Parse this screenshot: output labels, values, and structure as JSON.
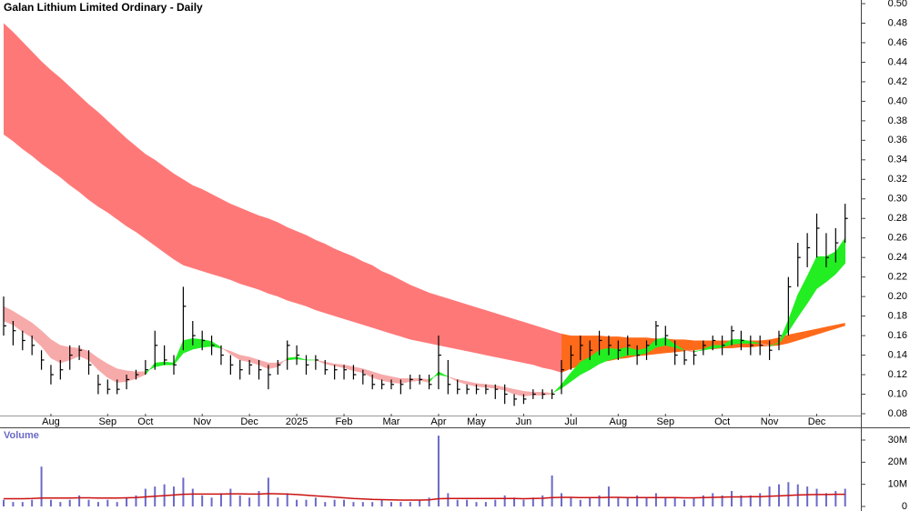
{
  "chart_data": [
    {
      "type": "ohlc",
      "title": "Galan Lithium Limited Ordinary - Daily",
      "categories": [
        null,
        null,
        null,
        null,
        null,
        "Aug",
        null,
        null,
        null,
        null,
        null,
        "Sep",
        null,
        null,
        null,
        "Oct",
        null,
        null,
        null,
        null,
        null,
        "Nov",
        null,
        null,
        null,
        null,
        "Dec",
        null,
        null,
        null,
        null,
        "2025",
        null,
        null,
        null,
        null,
        "Feb",
        null,
        null,
        null,
        null,
        "Mar",
        null,
        null,
        null,
        null,
        "Apr",
        null,
        null,
        null,
        "May",
        null,
        null,
        null,
        null,
        "Jun",
        null,
        null,
        null,
        null,
        "Jul",
        null,
        null,
        null,
        null,
        "Aug",
        null,
        null,
        null,
        null,
        "Sep",
        null,
        null,
        null,
        null,
        null,
        "Oct",
        null,
        null,
        null,
        null,
        "Nov",
        null,
        null,
        null,
        null,
        "Dec",
        null,
        null,
        null
      ],
      "high": [
        0.2,
        0.175,
        0.165,
        0.16,
        0.145,
        0.13,
        0.135,
        0.15,
        0.15,
        0.145,
        0.12,
        0.115,
        0.115,
        0.12,
        0.125,
        0.135,
        0.165,
        0.15,
        0.14,
        0.21,
        0.175,
        0.165,
        0.16,
        0.15,
        0.14,
        0.135,
        0.135,
        0.135,
        0.13,
        0.135,
        0.155,
        0.15,
        0.14,
        0.14,
        0.135,
        0.13,
        0.13,
        0.13,
        0.125,
        0.12,
        0.115,
        0.115,
        0.115,
        0.12,
        0.12,
        0.12,
        0.16,
        0.135,
        0.115,
        0.11,
        0.11,
        0.11,
        0.11,
        0.11,
        0.1,
        0.1,
        0.105,
        0.105,
        0.105,
        0.135,
        0.15,
        0.16,
        0.155,
        0.165,
        0.16,
        0.155,
        0.16,
        0.15,
        0.155,
        0.175,
        0.17,
        0.155,
        0.145,
        0.145,
        0.155,
        0.16,
        0.16,
        0.17,
        0.165,
        0.16,
        0.16,
        0.155,
        0.165,
        0.22,
        0.255,
        0.265,
        0.285,
        0.265,
        0.27,
        0.295
      ],
      "low": [
        0.16,
        0.15,
        0.145,
        0.14,
        0.125,
        0.11,
        0.115,
        0.125,
        0.135,
        0.12,
        0.1,
        0.1,
        0.1,
        0.105,
        0.115,
        0.12,
        0.125,
        0.13,
        0.12,
        0.145,
        0.15,
        0.145,
        0.14,
        0.13,
        0.12,
        0.115,
        0.12,
        0.115,
        0.105,
        0.12,
        0.125,
        0.13,
        0.12,
        0.125,
        0.12,
        0.115,
        0.115,
        0.115,
        0.11,
        0.105,
        0.105,
        0.105,
        0.1,
        0.105,
        0.11,
        0.105,
        0.105,
        0.1,
        0.1,
        0.1,
        0.1,
        0.1,
        0.095,
        0.09,
        0.088,
        0.09,
        0.095,
        0.095,
        0.095,
        0.1,
        0.125,
        0.135,
        0.135,
        0.14,
        0.14,
        0.135,
        0.14,
        0.13,
        0.135,
        0.15,
        0.15,
        0.13,
        0.13,
        0.13,
        0.14,
        0.145,
        0.14,
        0.15,
        0.145,
        0.14,
        0.14,
        0.135,
        0.145,
        0.16,
        0.21,
        0.23,
        0.24,
        0.23,
        0.235,
        0.255
      ],
      "close": [
        0.17,
        0.165,
        0.155,
        0.15,
        0.135,
        0.12,
        0.125,
        0.14,
        0.145,
        0.13,
        0.11,
        0.105,
        0.105,
        0.115,
        0.12,
        0.125,
        0.15,
        0.135,
        0.13,
        0.19,
        0.16,
        0.155,
        0.15,
        0.14,
        0.13,
        0.125,
        0.13,
        0.125,
        0.12,
        0.13,
        0.15,
        0.14,
        0.13,
        0.135,
        0.125,
        0.125,
        0.125,
        0.12,
        0.12,
        0.11,
        0.11,
        0.11,
        0.11,
        0.115,
        0.115,
        0.11,
        0.14,
        0.11,
        0.105,
        0.105,
        0.105,
        0.105,
        0.105,
        0.1,
        0.095,
        0.095,
        0.1,
        0.1,
        0.1,
        0.125,
        0.14,
        0.15,
        0.145,
        0.155,
        0.15,
        0.145,
        0.15,
        0.14,
        0.15,
        0.17,
        0.16,
        0.14,
        0.135,
        0.14,
        0.15,
        0.155,
        0.15,
        0.165,
        0.155,
        0.15,
        0.15,
        0.145,
        0.16,
        0.21,
        0.24,
        0.25,
        0.27,
        0.24,
        0.255,
        0.28
      ],
      "bands": [
        {
          "color": "#ff7878",
          "upper": [
            0.48,
            0.471,
            0.461,
            0.451,
            0.441,
            0.432,
            0.424,
            0.415,
            0.406,
            0.397,
            0.389,
            0.38,
            0.371,
            0.362,
            0.354,
            0.346,
            0.34,
            0.333,
            0.326,
            0.32,
            0.314,
            0.31,
            0.305,
            0.3,
            0.295,
            0.291,
            0.287,
            0.283,
            0.28,
            0.276,
            0.271,
            0.267,
            0.263,
            0.258,
            0.254,
            0.249,
            0.245,
            0.241,
            0.236,
            0.232,
            0.226,
            0.222,
            0.217,
            0.212,
            0.208,
            0.204,
            0.201,
            0.198,
            0.195,
            0.192,
            0.189,
            0.186,
            0.183,
            0.18,
            0.177,
            0.174,
            0.171,
            0.168,
            0.165,
            0.162,
            null,
            null,
            null,
            null,
            null,
            null,
            null,
            null,
            null,
            null,
            null,
            null,
            null,
            null,
            null,
            null,
            null,
            null,
            null,
            null,
            null,
            null,
            null,
            null,
            null,
            null,
            null,
            null,
            null,
            null
          ],
          "lower": [
            0.366,
            0.359,
            0.351,
            0.344,
            0.336,
            0.329,
            0.322,
            0.314,
            0.307,
            0.299,
            0.292,
            0.286,
            0.279,
            0.272,
            0.266,
            0.259,
            0.252,
            0.245,
            0.238,
            0.232,
            0.229,
            0.226,
            0.223,
            0.22,
            0.217,
            0.213,
            0.21,
            0.207,
            0.203,
            0.2,
            0.196,
            0.193,
            0.19,
            0.186,
            0.183,
            0.18,
            0.177,
            0.174,
            0.171,
            0.168,
            0.165,
            0.162,
            0.159,
            0.156,
            0.154,
            0.152,
            0.15,
            0.148,
            0.146,
            0.144,
            0.142,
            0.14,
            0.138,
            0.136,
            0.134,
            0.132,
            0.13,
            0.127,
            0.125,
            0.122,
            null,
            null,
            null,
            null,
            null,
            null,
            null,
            null,
            null,
            null,
            null,
            null,
            null,
            null,
            null,
            null,
            null,
            null,
            null,
            null,
            null,
            null,
            null,
            null,
            null,
            null,
            null,
            null,
            null,
            null
          ]
        },
        {
          "color": "#ff6a1a",
          "upper": [
            null,
            null,
            null,
            null,
            null,
            null,
            null,
            null,
            null,
            null,
            null,
            null,
            null,
            null,
            null,
            null,
            null,
            null,
            null,
            null,
            null,
            null,
            null,
            null,
            null,
            null,
            null,
            null,
            null,
            null,
            null,
            null,
            null,
            null,
            null,
            null,
            null,
            null,
            null,
            null,
            null,
            null,
            null,
            null,
            null,
            null,
            null,
            null,
            null,
            null,
            null,
            null,
            null,
            null,
            null,
            null,
            null,
            null,
            null,
            0.162,
            0.16,
            0.16,
            0.16,
            0.16,
            0.159,
            0.159,
            0.158,
            0.158,
            0.158,
            0.157,
            0.157,
            0.156,
            0.156,
            0.155,
            0.155,
            0.155,
            0.155,
            0.155,
            0.155,
            0.155,
            0.155,
            0.156,
            0.158,
            0.161,
            0.163,
            0.165,
            0.167,
            0.169,
            0.171,
            0.173
          ],
          "lower": [
            null,
            null,
            null,
            null,
            null,
            null,
            null,
            null,
            null,
            null,
            null,
            null,
            null,
            null,
            null,
            null,
            null,
            null,
            null,
            null,
            null,
            null,
            null,
            null,
            null,
            null,
            null,
            null,
            null,
            null,
            null,
            null,
            null,
            null,
            null,
            null,
            null,
            null,
            null,
            null,
            null,
            null,
            null,
            null,
            null,
            null,
            null,
            null,
            null,
            null,
            null,
            null,
            null,
            null,
            null,
            null,
            null,
            null,
            null,
            0.122,
            0.126,
            0.129,
            0.131,
            0.133,
            0.134,
            0.136,
            0.137,
            0.139,
            0.14,
            0.141,
            0.142,
            0.143,
            0.144,
            0.145,
            0.146,
            0.146,
            0.147,
            0.147,
            0.148,
            0.148,
            0.149,
            0.149,
            0.15,
            0.152,
            0.155,
            0.158,
            0.161,
            0.164,
            0.167,
            0.17
          ]
        }
      ],
      "ribbon": {
        "up_color": "#22ee22",
        "down_color": "#f7aaaa",
        "fast": [
          0.175,
          0.171,
          0.164,
          0.158,
          0.149,
          0.137,
          0.132,
          0.135,
          0.139,
          0.135,
          0.125,
          0.117,
          0.112,
          0.113,
          0.116,
          0.12,
          0.132,
          0.133,
          0.132,
          0.155,
          0.157,
          0.156,
          0.154,
          0.148,
          0.141,
          0.135,
          0.133,
          0.13,
          0.126,
          0.128,
          0.137,
          0.138,
          0.135,
          0.135,
          0.131,
          0.129,
          0.127,
          0.124,
          0.122,
          0.117,
          0.114,
          0.112,
          0.111,
          0.113,
          0.114,
          0.112,
          0.123,
          0.118,
          0.113,
          0.11,
          0.108,
          0.107,
          0.106,
          0.104,
          0.1,
          0.098,
          0.099,
          0.099,
          0.1,
          0.11,
          0.122,
          0.133,
          0.138,
          0.145,
          0.147,
          0.146,
          0.148,
          0.145,
          0.147,
          0.156,
          0.158,
          0.151,
          0.145,
          0.143,
          0.146,
          0.15,
          0.15,
          0.156,
          0.156,
          0.154,
          0.152,
          0.149,
          0.153,
          0.176,
          0.202,
          0.221,
          0.241,
          0.241,
          0.246,
          0.26
        ],
        "slow": [
          0.19,
          0.185,
          0.179,
          0.173,
          0.165,
          0.156,
          0.15,
          0.148,
          0.147,
          0.144,
          0.137,
          0.131,
          0.126,
          0.124,
          0.123,
          0.123,
          0.128,
          0.13,
          0.13,
          0.142,
          0.146,
          0.148,
          0.149,
          0.147,
          0.144,
          0.14,
          0.138,
          0.135,
          0.132,
          0.132,
          0.135,
          0.136,
          0.135,
          0.135,
          0.133,
          0.131,
          0.13,
          0.128,
          0.126,
          0.123,
          0.12,
          0.118,
          0.116,
          0.116,
          0.116,
          0.115,
          0.12,
          0.118,
          0.115,
          0.113,
          0.111,
          0.11,
          0.109,
          0.107,
          0.105,
          0.103,
          0.102,
          0.102,
          0.101,
          0.106,
          0.113,
          0.12,
          0.125,
          0.131,
          0.135,
          0.137,
          0.14,
          0.14,
          0.142,
          0.148,
          0.15,
          0.148,
          0.145,
          0.144,
          0.145,
          0.147,
          0.148,
          0.151,
          0.152,
          0.152,
          0.152,
          0.15,
          0.152,
          0.164,
          0.179,
          0.193,
          0.208,
          0.215,
          0.223,
          0.234
        ]
      },
      "ylim": [
        0.08,
        0.5
      ],
      "yticks": [
        {
          "value": 0.08,
          "label": "0.08"
        },
        {
          "value": 0.1,
          "label": "0.10"
        },
        {
          "value": 0.12,
          "label": "0.12"
        },
        {
          "value": 0.14,
          "label": "0.14"
        },
        {
          "value": 0.16,
          "label": "0.16"
        },
        {
          "value": 0.18,
          "label": "0.18"
        },
        {
          "value": 0.2,
          "label": "0.20"
        },
        {
          "value": 0.22,
          "label": "0.22"
        },
        {
          "value": 0.24,
          "label": "0.24"
        },
        {
          "value": 0.26,
          "label": "0.26"
        },
        {
          "value": 0.28,
          "label": "0.28"
        },
        {
          "value": 0.3,
          "label": "0.30"
        },
        {
          "value": 0.32,
          "label": "0.32"
        },
        {
          "value": 0.34,
          "label": "0.34"
        },
        {
          "value": 0.36,
          "label": "0.36"
        },
        {
          "value": 0.38,
          "label": "0.38"
        },
        {
          "value": 0.4,
          "label": "0.40"
        },
        {
          "value": 0.42,
          "label": "0.42"
        },
        {
          "value": 0.44,
          "label": "0.44"
        },
        {
          "value": 0.46,
          "label": "0.46"
        },
        {
          "value": 0.48,
          "label": "0.48"
        },
        {
          "value": 0.5,
          "label": "0.50"
        }
      ]
    },
    {
      "type": "bar",
      "title": "Volume",
      "color": "#6a6ac8",
      "values": [
        3,
        2,
        2,
        3,
        18,
        3,
        2,
        3,
        5,
        3,
        2,
        3,
        2,
        4,
        5,
        8,
        9,
        10,
        9,
        13,
        8,
        5,
        4,
        6,
        8,
        5,
        4,
        7,
        13,
        4,
        6,
        3,
        3,
        4,
        2,
        3,
        3,
        2,
        2,
        2,
        3,
        2,
        2,
        2,
        3,
        4,
        32,
        6,
        3,
        3,
        2,
        2,
        3,
        5,
        4,
        3,
        4,
        5,
        14,
        6,
        4,
        3,
        4,
        5,
        9,
        4,
        4,
        5,
        4,
        6,
        4,
        4,
        3,
        4,
        5,
        6,
        5,
        7,
        5,
        5,
        6,
        9,
        10,
        11,
        10,
        9,
        8,
        6,
        7,
        8
      ],
      "line": {
        "color": "#cc1111",
        "values": [
          3.5,
          3.5,
          3.5,
          3.6,
          3.8,
          3.8,
          3.8,
          3.8,
          3.9,
          3.9,
          3.8,
          3.8,
          3.8,
          3.9,
          4.0,
          4.3,
          4.6,
          4.9,
          5.2,
          5.5,
          5.6,
          5.6,
          5.6,
          5.6,
          5.7,
          5.7,
          5.6,
          5.6,
          5.8,
          5.7,
          5.6,
          5.4,
          5.1,
          4.8,
          4.5,
          4.2,
          3.9,
          3.6,
          3.4,
          3.2,
          3.1,
          3.0,
          2.9,
          2.9,
          2.9,
          3.0,
          3.5,
          3.6,
          3.6,
          3.6,
          3.6,
          3.6,
          3.6,
          3.6,
          3.6,
          3.5,
          3.6,
          3.7,
          4.0,
          4.1,
          4.1,
          4.0,
          4.0,
          4.0,
          4.1,
          4.1,
          4.0,
          4.0,
          4.0,
          4.0,
          4.0,
          4.0,
          3.9,
          3.9,
          4.0,
          4.1,
          4.2,
          4.3,
          4.3,
          4.4,
          4.4,
          4.6,
          4.8,
          5.0,
          5.2,
          5.3,
          5.4,
          5.4,
          5.5,
          5.5
        ]
      },
      "ylim": [
        0,
        36
      ],
      "yticks": [
        0,
        {
          "value": 10,
          "label": "10M"
        },
        {
          "value": 20,
          "label": "20M"
        },
        {
          "value": 30,
          "label": "30M"
        }
      ]
    }
  ]
}
